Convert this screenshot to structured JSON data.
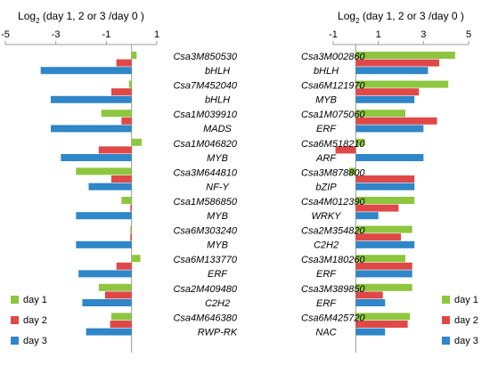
{
  "colors": {
    "day1": "#8dc63f",
    "day2": "#e04848",
    "day3": "#2f86c8",
    "axis": "#999999"
  },
  "chart_data": [
    {
      "type": "bar",
      "orientation": "horizontal",
      "title": "Log2 (day 1, 2 or 3 /day 0 )",
      "xlim": [
        -5,
        1
      ],
      "xticks": [
        -5,
        -3,
        -1,
        1
      ],
      "categories": [
        [
          "Csa3M850530",
          "bHLH"
        ],
        [
          "Csa7M452040",
          "bHLH"
        ],
        [
          "Csa1M039910",
          "MADS"
        ],
        [
          "Csa1M046820",
          "MYB"
        ],
        [
          "Csa3M644810",
          "NF-Y"
        ],
        [
          "Csa1M586850",
          "MYB"
        ],
        [
          "Csa6M303240",
          "MYB"
        ],
        [
          "Csa6M133770",
          "ERF"
        ],
        [
          "Csa2M409480",
          "C2H2"
        ],
        [
          "Csa4M646380",
          "RWP-RK"
        ]
      ],
      "series": [
        {
          "name": "day 1",
          "values": [
            0.2,
            -0.1,
            -1.2,
            0.4,
            -2.2,
            -0.4,
            -0.05,
            0.35,
            -1.3,
            -0.8
          ]
        },
        {
          "name": "day 2",
          "values": [
            -0.6,
            -0.8,
            -0.4,
            -1.3,
            -0.8,
            -0.05,
            -0.05,
            -0.6,
            -1.05,
            -0.85
          ]
        },
        {
          "name": "day 3",
          "values": [
            -3.6,
            -3.2,
            -3.2,
            -2.8,
            -1.7,
            -2.2,
            -2.2,
            -2.1,
            -1.95,
            -1.8
          ]
        }
      ]
    },
    {
      "type": "bar",
      "orientation": "horizontal",
      "title": "Log2 (day 1, 2 or 3 /day 0 )",
      "xlim": [
        -1,
        5
      ],
      "xticks": [
        -1,
        1,
        3,
        5
      ],
      "categories": [
        [
          "Csa3M002860",
          "bHLH"
        ],
        [
          "Csa6M121970",
          "MYB"
        ],
        [
          "Csa1M075060",
          "ERF"
        ],
        [
          "Csa6M518210",
          "ARF"
        ],
        [
          "Csa3M878800",
          "bZIP"
        ],
        [
          "Csa4M012390",
          "WRKY"
        ],
        [
          "Csa2M354820",
          "C2H2"
        ],
        [
          "Csa3M180260",
          "ERF"
        ],
        [
          "Csa3M389850",
          "ERF"
        ],
        [
          "Csa6M425720",
          "NAC"
        ]
      ],
      "series": [
        {
          "name": "day 1",
          "values": [
            4.4,
            4.1,
            2.2,
            0.4,
            -0.3,
            2.6,
            2.5,
            2.2,
            2.5,
            2.4
          ]
        },
        {
          "name": "day 2",
          "values": [
            3.7,
            2.8,
            3.6,
            -0.9,
            2.6,
            1.9,
            2.0,
            2.5,
            1.2,
            2.3
          ]
        },
        {
          "name": "day 3",
          "values": [
            3.2,
            2.6,
            3.0,
            3.0,
            2.6,
            1.0,
            2.6,
            2.5,
            1.3,
            1.3
          ]
        }
      ]
    }
  ],
  "legend": {
    "left": [
      "day 1",
      "day 2",
      "day 3"
    ],
    "right": [
      "day 1",
      "day 2",
      "day 3"
    ]
  }
}
